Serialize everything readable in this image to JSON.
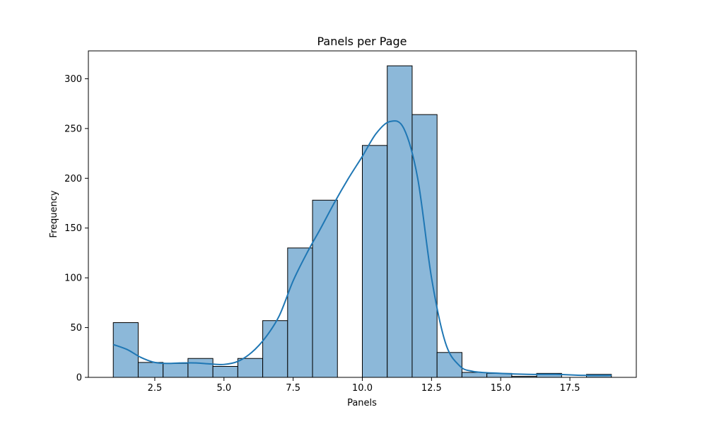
{
  "chart_data": {
    "type": "bar",
    "title": "Panels per Page",
    "xlabel": "Panels",
    "ylabel": "Frequency",
    "xlim": [
      0.1,
      19.9
    ],
    "ylim": [
      0,
      328
    ],
    "xticks": [
      2.5,
      5.0,
      7.5,
      10.0,
      12.5,
      15.0,
      17.5
    ],
    "xtick_labels": [
      "2.5",
      "5.0",
      "7.5",
      "10.0",
      "12.5",
      "15.0",
      "17.5"
    ],
    "yticks": [
      0,
      50,
      100,
      150,
      200,
      250,
      300
    ],
    "ytick_labels": [
      "0",
      "50",
      "100",
      "150",
      "200",
      "250",
      "300"
    ],
    "bin_width": 0.9,
    "bins": [
      {
        "start": 1.0,
        "count": 55
      },
      {
        "start": 1.9,
        "count": 15
      },
      {
        "start": 2.8,
        "count": 14
      },
      {
        "start": 3.7,
        "count": 19
      },
      {
        "start": 4.6,
        "count": 11
      },
      {
        "start": 5.5,
        "count": 19
      },
      {
        "start": 6.4,
        "count": 57
      },
      {
        "start": 7.3,
        "count": 130
      },
      {
        "start": 8.2,
        "count": 178
      },
      {
        "start": 9.1,
        "count": 0
      },
      {
        "start": 10.0,
        "count": 233
      },
      {
        "start": 10.9,
        "count": 313
      },
      {
        "start": 11.8,
        "count": 264
      },
      {
        "start": 12.7,
        "count": 25
      },
      {
        "start": 13.6,
        "count": 5
      },
      {
        "start": 14.5,
        "count": 4
      },
      {
        "start": 15.4,
        "count": 1
      },
      {
        "start": 16.3,
        "count": 4
      },
      {
        "start": 17.2,
        "count": 0
      },
      {
        "start": 18.1,
        "count": 3
      }
    ],
    "kde": [
      [
        1.0,
        33
      ],
      [
        1.5,
        28
      ],
      [
        2.0,
        20
      ],
      [
        2.5,
        15
      ],
      [
        3.0,
        14
      ],
      [
        3.5,
        14.5
      ],
      [
        4.0,
        14.5
      ],
      [
        4.5,
        13.5
      ],
      [
        5.0,
        13
      ],
      [
        5.5,
        16
      ],
      [
        6.0,
        25
      ],
      [
        6.5,
        40
      ],
      [
        7.0,
        62
      ],
      [
        7.5,
        97
      ],
      [
        8.0,
        125
      ],
      [
        8.5,
        150
      ],
      [
        9.0,
        176
      ],
      [
        9.5,
        200
      ],
      [
        10.0,
        222
      ],
      [
        10.5,
        245
      ],
      [
        11.0,
        257
      ],
      [
        11.5,
        250
      ],
      [
        12.0,
        200
      ],
      [
        12.5,
        100
      ],
      [
        13.0,
        35
      ],
      [
        13.5,
        12
      ],
      [
        14.0,
        6
      ],
      [
        15.0,
        4
      ],
      [
        16.0,
        3
      ],
      [
        17.0,
        3
      ],
      [
        18.0,
        2
      ],
      [
        19.0,
        2
      ]
    ],
    "bar_color": "#8cb8d9",
    "bar_edge_color": "#000000",
    "kde_color": "#1f77b4",
    "grid": false,
    "legend": "none"
  }
}
